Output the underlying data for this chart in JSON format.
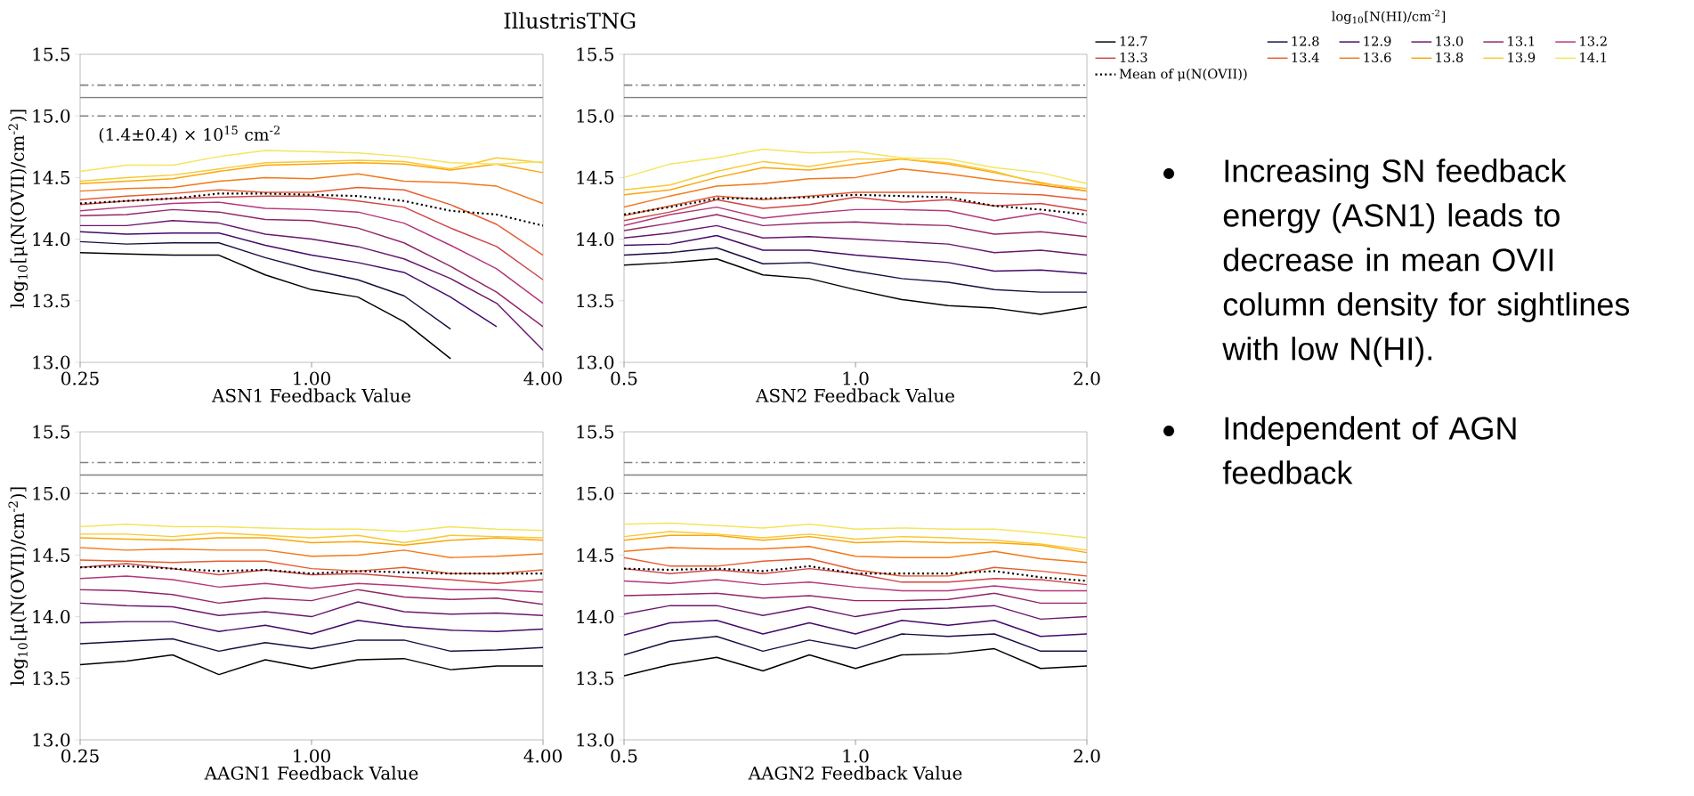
{
  "chart_data": [
    {
      "type": "line",
      "title": "IllustrisTNG",
      "xlabel": "ASN1 Feedback Value",
      "ylabel": "log$_{10}$[μ(N(OVII)/cm$^{-2}$)]",
      "log": "x",
      "annotations": [
        "(1.4±0.4) × 10$^{15}$ cm$^{-2}$"
      ],
      "xlim": [
        0.25,
        4
      ],
      "ylim": [
        13,
        15.5
      ],
      "xticks": [
        {
          "value": 0.25,
          "label": "0.25"
        },
        {
          "value": 1,
          "label": "1.00"
        },
        {
          "value": 4,
          "label": "4.00"
        }
      ],
      "yticks": [
        {
          "value": 13,
          "label": "13.0"
        },
        13.5,
        {
          "value": 14,
          "label": "14.0"
        },
        14.5,
        {
          "value": 15,
          "label": "15.0"
        },
        15.5
      ],
      "ref_lines": [
        {
          "axis": "y",
          "value": 15.25,
          "color": "#808080",
          "line_style": "dashdot"
        },
        {
          "axis": "y",
          "value": 15.15,
          "color": "#808080",
          "line_style": "solid"
        },
        {
          "axis": "y",
          "value": 15.0,
          "color": "#808080",
          "line_style": "dashdot"
        }
      ],
      "x": [
        0.25,
        0.33,
        0.435,
        0.574,
        0.758,
        1,
        1.32,
        1.74,
        2.3,
        3.03,
        4
      ],
      "series": [
        {
          "color": "#000004",
          "values": [
            13.89,
            13.88,
            13.87,
            13.87,
            13.71,
            13.59,
            13.53,
            13.33,
            13.03,
            null,
            null
          ]
        },
        {
          "color": "#1b0c41",
          "values": [
            13.98,
            13.96,
            13.97,
            13.97,
            13.85,
            13.75,
            13.67,
            13.54,
            13.27,
            null,
            null
          ]
        },
        {
          "color": "#420a68",
          "values": [
            14.06,
            14.04,
            14.05,
            14.05,
            13.95,
            13.87,
            13.81,
            13.73,
            13.53,
            13.29,
            null
          ]
        },
        {
          "color": "#6a176e",
          "values": [
            14.11,
            14.11,
            14.15,
            14.13,
            14.04,
            14.0,
            13.94,
            13.84,
            13.68,
            13.48,
            13.1
          ]
        },
        {
          "color": "#932667",
          "values": [
            14.19,
            14.2,
            14.24,
            14.22,
            14.16,
            14.15,
            14.09,
            13.97,
            13.78,
            13.57,
            13.29
          ]
        },
        {
          "color": "#b5367a",
          "values": [
            14.23,
            14.26,
            14.29,
            14.3,
            14.25,
            14.24,
            14.22,
            14.13,
            13.95,
            13.76,
            13.48
          ]
        },
        {
          "color": "#cf4446",
          "values": [
            14.28,
            14.31,
            14.33,
            14.34,
            14.35,
            14.35,
            14.31,
            14.26,
            14.09,
            13.94,
            13.67
          ]
        },
        {
          "color": "#e55c30",
          "values": [
            14.32,
            14.35,
            14.37,
            14.4,
            14.38,
            14.38,
            14.42,
            14.4,
            14.28,
            14.12,
            13.87
          ]
        },
        {
          "color": "#f37819",
          "values": [
            14.39,
            14.41,
            14.42,
            14.47,
            14.5,
            14.49,
            14.53,
            14.47,
            14.46,
            14.43,
            14.29
          ]
        },
        {
          "color": "#fca50a",
          "values": [
            14.45,
            14.47,
            14.49,
            14.55,
            14.6,
            14.61,
            14.62,
            14.61,
            14.56,
            14.61,
            14.54
          ]
        },
        {
          "color": "#f8c932",
          "values": [
            14.47,
            14.5,
            14.52,
            14.57,
            14.62,
            14.63,
            14.64,
            14.63,
            14.57,
            14.66,
            14.62
          ]
        },
        {
          "color": "#f3e55d",
          "values": [
            14.55,
            14.6,
            14.6,
            14.67,
            14.72,
            14.71,
            14.7,
            14.67,
            14.62,
            14.61,
            14.63
          ]
        },
        {
          "color": "#000000",
          "line_style": "dotted",
          "values": [
            14.29,
            14.31,
            14.33,
            14.37,
            14.37,
            14.36,
            14.35,
            14.31,
            14.23,
            14.2,
            14.11
          ]
        }
      ]
    },
    {
      "type": "line",
      "xlabel": "ASN2 Feedback Value",
      "log": "x",
      "legend": "top right",
      "legend_title": "log$_{10}$[N(HI)/cm$^{-2}$]",
      "xlim": [
        0.5,
        2
      ],
      "ylim": [
        13,
        15.5
      ],
      "xticks": [
        {
          "value": 0.5,
          "label": "0.5"
        },
        {
          "value": 1,
          "label": "1.0"
        },
        {
          "value": 2,
          "label": "2.0"
        }
      ],
      "yticks": [
        {
          "value": 13,
          "label": "13.0"
        },
        13.5,
        {
          "value": 14,
          "label": "14.0"
        },
        14.5,
        {
          "value": 15,
          "label": "15.0"
        },
        15.5
      ],
      "ref_lines": [
        {
          "axis": "y",
          "value": 15.25,
          "color": "#808080",
          "line_style": "dashdot"
        },
        {
          "axis": "y",
          "value": 15.15,
          "color": "#808080",
          "line_style": "solid"
        },
        {
          "axis": "y",
          "value": 15.0,
          "color": "#808080",
          "line_style": "dashdot"
        }
      ],
      "x": [
        0.5,
        0.574,
        0.66,
        0.758,
        0.871,
        1,
        1.149,
        1.32,
        1.516,
        1.741,
        2
      ],
      "series": [
        {
          "name": "12.7",
          "color": "#000004",
          "values": [
            13.79,
            13.81,
            13.84,
            13.71,
            13.68,
            13.59,
            13.51,
            13.46,
            13.44,
            13.39,
            13.45
          ]
        },
        {
          "name": "12.8",
          "color": "#1b0c41",
          "values": [
            13.87,
            13.89,
            13.93,
            13.8,
            13.81,
            13.74,
            13.68,
            13.65,
            13.59,
            13.57,
            13.57
          ]
        },
        {
          "name": "12.9",
          "color": "#420a68",
          "values": [
            13.95,
            13.96,
            14.03,
            13.91,
            13.91,
            13.87,
            13.84,
            13.81,
            13.74,
            13.75,
            13.72
          ]
        },
        {
          "name": "13.0",
          "color": "#6a176e",
          "values": [
            14.01,
            14.05,
            14.11,
            14.01,
            14.02,
            14.0,
            13.98,
            13.96,
            13.89,
            13.91,
            13.87
          ]
        },
        {
          "name": "13.1",
          "color": "#932667",
          "values": [
            14.07,
            14.13,
            14.2,
            14.11,
            14.13,
            14.14,
            14.12,
            14.11,
            14.04,
            14.06,
            14.02
          ]
        },
        {
          "name": "13.2",
          "color": "#b5367a",
          "values": [
            14.11,
            14.2,
            14.26,
            14.17,
            14.21,
            14.24,
            14.24,
            14.23,
            14.15,
            14.21,
            14.13
          ]
        },
        {
          "name": "13.3",
          "color": "#cf4446",
          "values": [
            14.15,
            14.22,
            14.32,
            14.25,
            14.28,
            14.34,
            14.3,
            14.32,
            14.27,
            14.29,
            14.23
          ]
        },
        {
          "name": "13.4",
          "color": "#e55c30",
          "values": [
            14.19,
            14.27,
            14.35,
            14.32,
            14.35,
            14.38,
            14.38,
            14.38,
            14.37,
            14.36,
            14.32
          ]
        },
        {
          "name": "13.6",
          "color": "#f37819",
          "values": [
            14.26,
            14.35,
            14.43,
            14.45,
            14.49,
            14.5,
            14.57,
            14.53,
            14.48,
            14.44,
            14.39
          ]
        },
        {
          "name": "13.8",
          "color": "#fca50a",
          "values": [
            14.36,
            14.4,
            14.5,
            14.58,
            14.56,
            14.61,
            14.65,
            14.61,
            14.54,
            14.46,
            14.39
          ]
        },
        {
          "name": "13.9",
          "color": "#f8c932",
          "values": [
            14.4,
            14.44,
            14.55,
            14.63,
            14.59,
            14.65,
            14.65,
            14.62,
            14.55,
            14.45,
            14.41
          ]
        },
        {
          "name": "14.1",
          "color": "#f3e55d",
          "values": [
            14.5,
            14.61,
            14.66,
            14.73,
            14.7,
            14.71,
            14.66,
            14.65,
            14.58,
            14.54,
            14.45
          ]
        },
        {
          "name": "Mean of μ(N(OVII))",
          "color": "#000000",
          "line_style": "dotted",
          "values": [
            14.2,
            14.26,
            14.33,
            14.33,
            14.34,
            14.36,
            14.35,
            14.34,
            14.27,
            14.24,
            14.2
          ]
        }
      ]
    },
    {
      "type": "line",
      "xlabel": "AAGN1 Feedback Value",
      "ylabel": "log$_{10}$[μ(N(OVII)/cm$^{-2}$)]",
      "log": "x",
      "xlim": [
        0.25,
        4
      ],
      "ylim": [
        13,
        15.5
      ],
      "xticks": [
        {
          "value": 0.25,
          "label": "0.25"
        },
        {
          "value": 1,
          "label": "1.00"
        },
        {
          "value": 4,
          "label": "4.00"
        }
      ],
      "yticks": [
        {
          "value": 13,
          "label": "13.0"
        },
        13.5,
        {
          "value": 14,
          "label": "14.0"
        },
        14.5,
        {
          "value": 15,
          "label": "15.0"
        },
        15.5
      ],
      "ref_lines": [
        {
          "axis": "y",
          "value": 15.25,
          "color": "#808080",
          "line_style": "dashdot"
        },
        {
          "axis": "y",
          "value": 15.15,
          "color": "#808080",
          "line_style": "solid"
        },
        {
          "axis": "y",
          "value": 15.0,
          "color": "#808080",
          "line_style": "dashdot"
        }
      ],
      "x": [
        0.25,
        0.33,
        0.435,
        0.574,
        0.758,
        1,
        1.32,
        1.74,
        2.3,
        3.03,
        4
      ],
      "series": [
        {
          "color": "#000004",
          "values": [
            13.61,
            13.64,
            13.69,
            13.53,
            13.65,
            13.58,
            13.65,
            13.66,
            13.57,
            13.6,
            13.6
          ]
        },
        {
          "color": "#1b0c41",
          "values": [
            13.78,
            13.8,
            13.82,
            13.72,
            13.79,
            13.74,
            13.81,
            13.81,
            13.72,
            13.73,
            13.75
          ]
        },
        {
          "color": "#420a68",
          "values": [
            13.95,
            13.96,
            13.96,
            13.88,
            13.93,
            13.86,
            13.97,
            13.92,
            13.89,
            13.88,
            13.9
          ]
        },
        {
          "color": "#6a176e",
          "values": [
            14.11,
            14.09,
            14.08,
            14.01,
            14.04,
            14.0,
            14.12,
            14.04,
            14.02,
            14.03,
            14.01
          ]
        },
        {
          "color": "#932667",
          "values": [
            14.22,
            14.21,
            14.18,
            14.11,
            14.15,
            14.13,
            14.22,
            14.16,
            14.14,
            14.15,
            14.1
          ]
        },
        {
          "color": "#b5367a",
          "values": [
            14.31,
            14.33,
            14.3,
            14.24,
            14.27,
            14.23,
            14.27,
            14.25,
            14.22,
            14.22,
            14.2
          ]
        },
        {
          "color": "#cf4446",
          "values": [
            14.4,
            14.43,
            14.39,
            14.34,
            14.38,
            14.34,
            14.35,
            14.32,
            14.3,
            14.27,
            14.3
          ]
        },
        {
          "color": "#e55c30",
          "values": [
            14.46,
            14.45,
            14.44,
            14.45,
            14.45,
            14.39,
            14.37,
            14.4,
            14.35,
            14.35,
            14.38
          ]
        },
        {
          "color": "#f37819",
          "values": [
            14.56,
            14.54,
            14.55,
            14.54,
            14.54,
            14.49,
            14.5,
            14.54,
            14.48,
            14.49,
            14.51
          ]
        },
        {
          "color": "#fca50a",
          "values": [
            14.64,
            14.63,
            14.62,
            14.64,
            14.64,
            14.6,
            14.61,
            14.58,
            14.62,
            14.64,
            14.62
          ]
        },
        {
          "color": "#f8c932",
          "values": [
            14.67,
            14.67,
            14.65,
            14.68,
            14.66,
            14.64,
            14.66,
            14.6,
            14.66,
            14.65,
            14.64
          ]
        },
        {
          "color": "#f3e55d",
          "values": [
            14.73,
            14.75,
            14.73,
            14.73,
            14.72,
            14.71,
            14.71,
            14.69,
            14.73,
            14.71,
            14.7
          ]
        },
        {
          "color": "#000000",
          "line_style": "dotted",
          "values": [
            14.4,
            14.41,
            14.39,
            14.37,
            14.38,
            14.35,
            14.37,
            14.36,
            14.35,
            14.35,
            14.35
          ]
        }
      ]
    },
    {
      "type": "line",
      "xlabel": "AAGN2 Feedback Value",
      "log": "x",
      "xlim": [
        0.5,
        2
      ],
      "ylim": [
        13,
        15.5
      ],
      "xticks": [
        {
          "value": 0.5,
          "label": "0.5"
        },
        {
          "value": 1,
          "label": "1.0"
        },
        {
          "value": 2,
          "label": "2.0"
        }
      ],
      "yticks": [
        {
          "value": 13,
          "label": "13.0"
        },
        13.5,
        {
          "value": 14,
          "label": "14.0"
        },
        14.5,
        {
          "value": 15,
          "label": "15.0"
        },
        15.5
      ],
      "ref_lines": [
        {
          "axis": "y",
          "value": 15.25,
          "color": "#808080",
          "line_style": "dashdot"
        },
        {
          "axis": "y",
          "value": 15.15,
          "color": "#808080",
          "line_style": "solid"
        },
        {
          "axis": "y",
          "value": 15.0,
          "color": "#808080",
          "line_style": "dashdot"
        }
      ],
      "x": [
        0.5,
        0.574,
        0.66,
        0.758,
        0.871,
        1,
        1.149,
        1.32,
        1.516,
        1.741,
        2
      ],
      "series": [
        {
          "color": "#000004",
          "values": [
            13.52,
            13.61,
            13.67,
            13.56,
            13.69,
            13.58,
            13.69,
            13.7,
            13.74,
            13.58,
            13.6
          ]
        },
        {
          "color": "#1b0c41",
          "values": [
            13.69,
            13.8,
            13.84,
            13.72,
            13.81,
            13.74,
            13.86,
            13.84,
            13.86,
            13.72,
            13.72
          ]
        },
        {
          "color": "#420a68",
          "values": [
            13.85,
            13.95,
            13.97,
            13.86,
            13.95,
            13.86,
            13.97,
            13.93,
            13.97,
            13.84,
            13.86
          ]
        },
        {
          "color": "#6a176e",
          "values": [
            14.02,
            14.09,
            14.09,
            14.01,
            14.08,
            14.0,
            14.06,
            14.07,
            14.09,
            13.98,
            14.0
          ]
        },
        {
          "color": "#932667",
          "values": [
            14.17,
            14.18,
            14.19,
            14.15,
            14.17,
            14.13,
            14.13,
            14.14,
            14.19,
            14.11,
            14.11
          ]
        },
        {
          "color": "#b5367a",
          "values": [
            14.29,
            14.27,
            14.3,
            14.26,
            14.28,
            14.24,
            14.21,
            14.21,
            14.25,
            14.21,
            14.21
          ]
        },
        {
          "color": "#cf4446",
          "values": [
            14.39,
            14.35,
            14.38,
            14.35,
            14.39,
            14.35,
            14.28,
            14.28,
            14.31,
            14.3,
            14.26
          ]
        },
        {
          "color": "#e55c30",
          "values": [
            14.48,
            14.41,
            14.41,
            14.45,
            14.47,
            14.38,
            14.33,
            14.33,
            14.4,
            14.37,
            14.33
          ]
        },
        {
          "color": "#f37819",
          "values": [
            14.53,
            14.56,
            14.55,
            14.55,
            14.57,
            14.49,
            14.48,
            14.48,
            14.53,
            14.47,
            14.44
          ]
        },
        {
          "color": "#fca50a",
          "values": [
            14.62,
            14.66,
            14.66,
            14.62,
            14.65,
            14.6,
            14.61,
            14.6,
            14.6,
            14.58,
            14.52
          ]
        },
        {
          "color": "#f8c932",
          "values": [
            14.65,
            14.69,
            14.67,
            14.64,
            14.67,
            14.63,
            14.65,
            14.64,
            14.62,
            14.59,
            14.54
          ]
        },
        {
          "color": "#f3e55d",
          "values": [
            14.75,
            14.76,
            14.74,
            14.72,
            14.75,
            14.71,
            14.72,
            14.71,
            14.71,
            14.68,
            14.64
          ]
        },
        {
          "color": "#000000",
          "line_style": "dotted",
          "values": [
            14.39,
            14.38,
            14.39,
            14.37,
            14.41,
            14.35,
            14.35,
            14.35,
            14.37,
            14.32,
            14.29
          ]
        }
      ]
    },
    {
      "type": "other",
      "annotations": [
        "Increasing SN feedback energy (ASN1) leads to decrease in mean OVII column density for sightlines with low N(HI).",
        "Independent of AGN feedback"
      ]
    }
  ]
}
